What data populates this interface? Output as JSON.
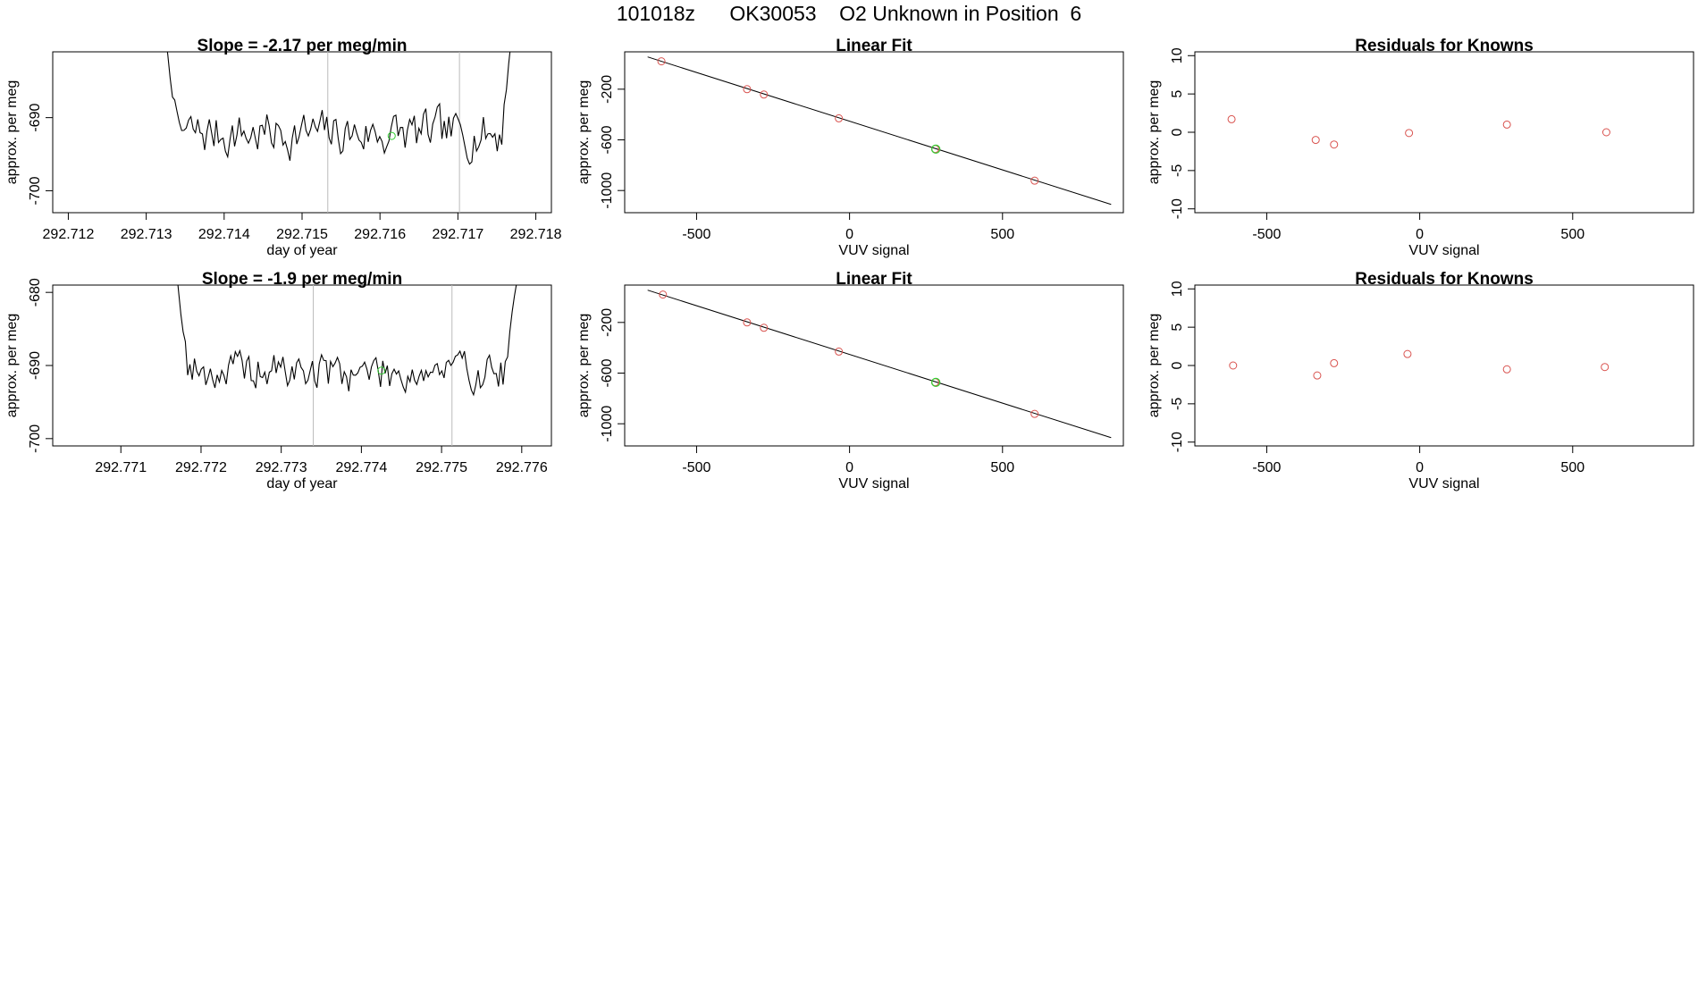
{
  "header": {
    "title": "101018z      OK30053    O2 Unknown in Position  6"
  },
  "colors": {
    "line": "#000000",
    "known_point": "#d9534f",
    "unknown_point": "#33cc33",
    "marker_line": "#bbbbbb",
    "frame": "#000000"
  },
  "chart_data": [
    {
      "id": "ts1",
      "type": "line",
      "title": "Slope =  -2.17  per meg/min",
      "xlabel": "day of year",
      "ylabel": "approx. per meg",
      "xlim": [
        292.7118,
        292.7182
      ],
      "ylim": [
        -703,
        -681
      ],
      "xticks": [
        292.712,
        292.713,
        292.714,
        292.715,
        292.716,
        292.717,
        292.718
      ],
      "xtick_labels": [
        "292.712",
        "292.713",
        "292.714",
        "292.715",
        "292.716",
        "292.717",
        "292.718"
      ],
      "yticks": [
        -690,
        -700
      ],
      "ytick_labels": [
        "-690",
        "-700"
      ],
      "vlines": [
        292.71533,
        292.71702
      ],
      "highlight_point": {
        "x": 292.71615,
        "y": -692.5
      },
      "series": {
        "x_start": 292.7131,
        "x_end": 292.7178,
        "n": 160,
        "seed": 7,
        "mean": -692.2,
        "amp": 3.6,
        "clip_top": -681
      }
    },
    {
      "id": "ts2",
      "type": "line",
      "title": "Slope =  -1.9  per meg/min",
      "xlabel": "day of year",
      "ylabel": "approx. per meg",
      "xlim": [
        292.77015,
        292.77637
      ],
      "ylim": [
        -701,
        -679
      ],
      "xticks": [
        292.771,
        292.772,
        292.773,
        292.774,
        292.775,
        292.776
      ],
      "xtick_labels": [
        "292.771",
        "292.772",
        "292.773",
        "292.774",
        "292.775",
        "292.776"
      ],
      "yticks": [
        -680,
        -690,
        -700
      ],
      "ytick_labels": [
        "-680",
        "-690",
        "-700"
      ],
      "vlines": [
        292.7734,
        292.77513
      ],
      "highlight_point": {
        "x": 292.77425,
        "y": -690.7
      },
      "series": {
        "x_start": 292.77155,
        "x_end": 292.77605,
        "n": 160,
        "seed": 19,
        "mean": -690.8,
        "amp": 3.2,
        "clip_top": -679
      }
    },
    {
      "id": "fit1",
      "type": "scatter",
      "title": "Linear Fit",
      "xlabel": "VUV signal",
      "ylabel": "approx. per meg",
      "xlim": [
        -735,
        895
      ],
      "ylim": [
        -1175,
        95
      ],
      "xticks": [
        -500,
        0,
        500
      ],
      "xtick_labels": [
        "-500",
        "0",
        "500"
      ],
      "yticks": [
        -200,
        -600,
        -1000
      ],
      "ytick_labels": [
        "-200",
        "-600",
        "-1000"
      ],
      "fit_line": {
        "x": [
          -660,
          855
        ],
        "y": [
          55,
          -1110
        ]
      },
      "known_points": [
        {
          "x": -615,
          "y": 20
        },
        {
          "x": -335,
          "y": -200
        },
        {
          "x": -280,
          "y": -242
        },
        {
          "x": -35,
          "y": -430
        },
        {
          "x": 280,
          "y": -672
        },
        {
          "x": 605,
          "y": -922
        }
      ],
      "unknown_point": {
        "x": 282,
        "y": -673
      }
    },
    {
      "id": "res1",
      "type": "scatter",
      "title": "Residuals for Knowns",
      "xlabel": "VUV signal",
      "ylabel": "approx. per meg",
      "xlim": [
        -735,
        895
      ],
      "ylim": [
        -10.5,
        10.5
      ],
      "xticks": [
        -500,
        0,
        500
      ],
      "xtick_labels": [
        "-500",
        "0",
        "500"
      ],
      "yticks": [
        10,
        5,
        0,
        -5,
        -10
      ],
      "ytick_labels": [
        "10",
        "5",
        "0",
        "-5",
        "-10"
      ],
      "known_points": [
        {
          "x": -615,
          "y": 1.7
        },
        {
          "x": -340,
          "y": -1.0
        },
        {
          "x": -280,
          "y": -1.6
        },
        {
          "x": -35,
          "y": -0.1
        },
        {
          "x": 285,
          "y": 1.0
        },
        {
          "x": 610,
          "y": 0.0
        }
      ]
    },
    {
      "id": "fit2",
      "type": "scatter",
      "title": "Linear Fit",
      "xlabel": "VUV signal",
      "ylabel": "approx. per meg",
      "xlim": [
        -735,
        895
      ],
      "ylim": [
        -1175,
        95
      ],
      "xticks": [
        -500,
        0,
        500
      ],
      "xtick_labels": [
        "-500",
        "0",
        "500"
      ],
      "yticks": [
        -200,
        -600,
        -1000
      ],
      "ytick_labels": [
        "-200",
        "-600",
        "-1000"
      ],
      "fit_line": {
        "x": [
          -660,
          855
        ],
        "y": [
          55,
          -1110
        ]
      },
      "known_points": [
        {
          "x": -610,
          "y": 20
        },
        {
          "x": -335,
          "y": -200
        },
        {
          "x": -280,
          "y": -242
        },
        {
          "x": -35,
          "y": -430
        },
        {
          "x": 280,
          "y": -672
        },
        {
          "x": 605,
          "y": -922
        }
      ],
      "unknown_point": {
        "x": 282,
        "y": -673
      }
    },
    {
      "id": "res2",
      "type": "scatter",
      "title": "Residuals for Knowns",
      "xlabel": "VUV signal",
      "ylabel": "approx. per meg",
      "xlim": [
        -735,
        895
      ],
      "ylim": [
        -10.5,
        10.5
      ],
      "xticks": [
        -500,
        0,
        500
      ],
      "xtick_labels": [
        "-500",
        "0",
        "500"
      ],
      "yticks": [
        10,
        5,
        0,
        -5,
        -10
      ],
      "ytick_labels": [
        "10",
        "5",
        "0",
        "-5",
        "-10"
      ],
      "known_points": [
        {
          "x": -610,
          "y": 0.0
        },
        {
          "x": -335,
          "y": -1.3
        },
        {
          "x": -280,
          "y": 0.3
        },
        {
          "x": -40,
          "y": 1.5
        },
        {
          "x": 285,
          "y": -0.5
        },
        {
          "x": 605,
          "y": -0.2
        }
      ]
    }
  ]
}
